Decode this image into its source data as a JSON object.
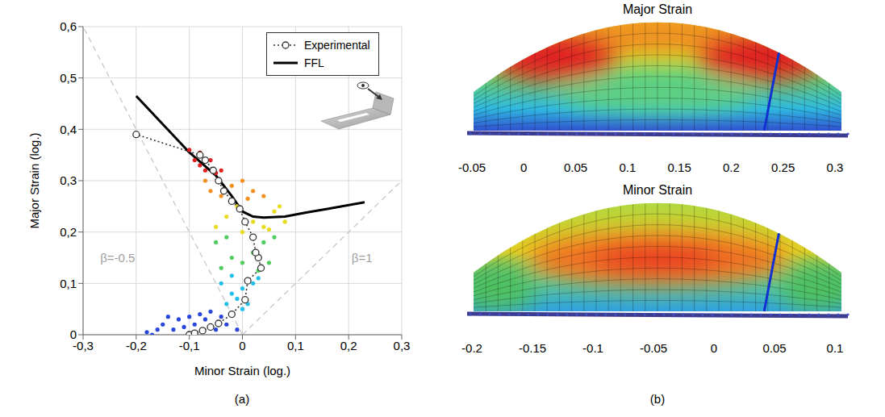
{
  "chart_data": [
    {
      "type": "scatter",
      "panel": "(a)",
      "x_label": "Minor Strain (log.)",
      "y_label": "Major Strain (log.)",
      "xlim": [
        -0.3,
        0.3
      ],
      "xticks": [
        {
          "value": -0.3,
          "label": "-0,3"
        },
        {
          "value": -0.2,
          "label": "-0,2"
        },
        {
          "value": -0.1,
          "label": "-0,1"
        },
        0,
        {
          "value": 0.1,
          "label": "0,1"
        },
        {
          "value": 0.2,
          "label": "0,2"
        },
        {
          "value": 0.3,
          "label": "0,3"
        }
      ],
      "ylim": [
        0,
        0.6
      ],
      "yticks": [
        0,
        {
          "value": 0.1,
          "label": "0,1"
        },
        {
          "value": 0.2,
          "label": "0,2"
        },
        {
          "value": 0.3,
          "label": "0,3"
        },
        {
          "value": 0.4,
          "label": "0,4"
        },
        {
          "value": 0.5,
          "label": "0,5"
        },
        {
          "value": 0.6,
          "label": "0,6"
        }
      ],
      "grid": true,
      "legend": "upper right",
      "annotations": [
        {
          "text": "β=-0.5",
          "x": -0.235,
          "y": 0.15
        },
        {
          "text": "β=1",
          "x": 0.225,
          "y": 0.15
        }
      ],
      "series": [
        {
          "type": "line",
          "line_style": "dashed",
          "marker": "none",
          "color": "#c8c8c8",
          "x": [
            0,
            -0.3
          ],
          "values": [
            0,
            0.6
          ]
        },
        {
          "type": "line",
          "line_style": "dashed",
          "marker": "none",
          "color": "#c8c8c8",
          "x": [
            0,
            0.3
          ],
          "values": [
            0,
            0.3
          ]
        },
        {
          "type": "scatter",
          "marker": "dot",
          "color": "#2846d8",
          "x": [
            -0.18,
            -0.17,
            -0.16,
            -0.15,
            -0.14,
            -0.13,
            -0.12,
            -0.11,
            -0.1,
            -0.09,
            -0.08,
            -0.07,
            -0.06,
            -0.05,
            -0.04,
            -0.03,
            -0.02,
            -0.01
          ],
          "values": [
            0.005,
            0.0,
            0.01,
            0.02,
            0.035,
            0.01,
            0.03,
            0.015,
            0.035,
            0.02,
            0.04,
            0.03,
            0.045,
            0.01,
            0.035,
            0.02,
            0.04,
            0.01
          ]
        },
        {
          "type": "scatter",
          "marker": "dot",
          "color": "#22c0e8",
          "x": [
            -0.03,
            -0.02,
            -0.01,
            0,
            0.01,
            0.02,
            -0.04,
            0.03,
            -0.02,
            0.0
          ],
          "values": [
            0.06,
            0.08,
            0.07,
            0.09,
            0.06,
            0.1,
            0.1,
            0.11,
            0.115,
            0.05
          ]
        },
        {
          "type": "scatter",
          "marker": "dot",
          "color": "#50cc60",
          "x": [
            -0.04,
            -0.02,
            0,
            0.02,
            0.04,
            0.05,
            -0.05,
            0.06,
            0.03,
            -0.03
          ],
          "values": [
            0.13,
            0.15,
            0.14,
            0.16,
            0.18,
            0.14,
            0.18,
            0.19,
            0.125,
            0.19
          ]
        },
        {
          "type": "scatter",
          "marker": "dot",
          "color": "#e8dc20",
          "x": [
            -0.05,
            -0.03,
            0,
            0.02,
            0.04,
            0.06,
            0.08,
            0.07,
            -0.01,
            0.05
          ],
          "values": [
            0.21,
            0.23,
            0.2,
            0.22,
            0.21,
            0.24,
            0.22,
            0.25,
            0.25,
            0.205
          ]
        },
        {
          "type": "scatter",
          "marker": "dot",
          "color": "#f59020",
          "x": [
            -0.06,
            -0.04,
            -0.02,
            0,
            0.02,
            0.04,
            -0.07,
            0.01
          ],
          "values": [
            0.28,
            0.27,
            0.29,
            0.3,
            0.28,
            0.27,
            0.3,
            0.265
          ]
        },
        {
          "type": "scatter",
          "marker": "dot",
          "color": "#e02020",
          "x": [
            -0.1,
            -0.09,
            -0.08,
            -0.07,
            -0.06,
            -0.05,
            -0.08,
            -0.04
          ],
          "values": [
            0.36,
            0.34,
            0.33,
            0.32,
            0.34,
            0.315,
            0.355,
            0.32
          ]
        },
        {
          "type": "line",
          "name": "FFL",
          "line_style": "solid",
          "marker": "none",
          "color": "#000000",
          "x": [
            -0.2,
            -0.1,
            -0.05,
            -0.02,
            0,
            0.02,
            0.04,
            0.08,
            0.12,
            0.16,
            0.23
          ],
          "values": [
            0.465,
            0.355,
            0.31,
            0.27,
            0.24,
            0.23,
            0.228,
            0.23,
            0.238,
            0.245,
            0.258
          ]
        },
        {
          "type": "line",
          "name": "Experimental",
          "line_style": "dotted",
          "marker": "open_circle",
          "color": "#333333",
          "x": [
            -0.1,
            -0.09,
            -0.075,
            -0.06,
            -0.045,
            -0.02,
            0.005,
            0.01,
            0.035,
            0.03,
            0.025,
            0.02,
            0.005,
            -0.005,
            -0.02,
            -0.035,
            -0.045,
            -0.055,
            -0.07,
            -0.08,
            -0.2
          ],
          "values": [
            0.0,
            0.003,
            0.008,
            0.015,
            0.022,
            0.04,
            0.068,
            0.105,
            0.13,
            0.15,
            0.16,
            0.19,
            0.22,
            0.245,
            0.26,
            0.28,
            0.3,
            0.32,
            0.34,
            0.35,
            0.39
          ]
        }
      ]
    },
    {
      "type": "contour",
      "panel": "(b)",
      "title": "Major Strain",
      "colorbar": {
        "lim": [
          -0.05,
          0.3
        ],
        "ticks": [
          -0.05,
          0,
          0.05,
          0.1,
          0.15,
          0.2,
          0.25,
          0.3
        ]
      }
    },
    {
      "type": "contour",
      "title": "Minor Strain",
      "colorbar": {
        "lim": [
          -0.2,
          0.1
        ],
        "ticks": [
          -0.2,
          -0.15,
          -0.1,
          -0.05,
          0,
          0.05,
          0.1
        ]
      }
    }
  ]
}
